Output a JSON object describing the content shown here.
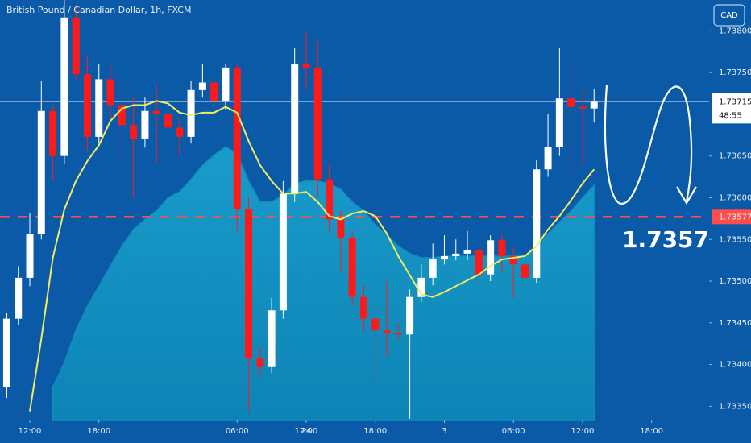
{
  "chart_data": {
    "type": "candlestick",
    "title": "British Pound / Canadian Dollar, 1h, FXCM",
    "currency": "CAD",
    "x": [
      -2,
      -1,
      0,
      1,
      2,
      3,
      4,
      5,
      6,
      7,
      8,
      9,
      10,
      11,
      12,
      13,
      14,
      15,
      16,
      17,
      18,
      19,
      20,
      21,
      22,
      23,
      24,
      25,
      26,
      27,
      28,
      29,
      30,
      31,
      32,
      33,
      34,
      35,
      36,
      37,
      38,
      39,
      40,
      41,
      42,
      43,
      44,
      45,
      46,
      47,
      48,
      49
    ],
    "open": [
      1.73373,
      1.73455,
      1.73504,
      1.73557,
      1.73704,
      1.7365,
      1.73816,
      1.73748,
      1.73673,
      1.73742,
      1.73711,
      1.73687,
      1.73671,
      1.73704,
      1.737,
      1.73684,
      1.73673,
      1.73729,
      1.73738,
      1.73716,
      1.73756,
      1.73586,
      1.73407,
      1.73397,
      1.73465,
      1.73605,
      1.7376,
      1.73756,
      1.73622,
      1.73574,
      1.73552,
      1.73481,
      1.73455,
      1.73441,
      1.73438,
      1.73436,
      1.73481,
      1.73504,
      1.73526,
      1.7353,
      1.73533,
      1.73537,
      1.73508,
      1.73549,
      1.7353,
      1.7352,
      1.73504,
      1.73634,
      1.73661,
      1.73719,
      1.73709,
      1.73707
    ],
    "high": [
      1.73462,
      1.73518,
      1.73581,
      1.7374,
      1.73712,
      1.73837,
      1.7383,
      1.7377,
      1.7376,
      1.7376,
      1.73735,
      1.7372,
      1.7372,
      1.73735,
      1.73712,
      1.73695,
      1.7374,
      1.7376,
      1.73745,
      1.7376,
      1.7376,
      1.736,
      1.7342,
      1.7348,
      1.7362,
      1.7378,
      1.738,
      1.7379,
      1.7364,
      1.73585,
      1.7356,
      1.73495,
      1.7347,
      1.735,
      1.7345,
      1.7349,
      1.7352,
      1.73545,
      1.73555,
      1.7355,
      1.7356,
      1.73545,
      1.73555,
      1.73555,
      1.7354,
      1.73535,
      1.73645,
      1.737,
      1.7378,
      1.7377,
      1.7373,
      1.7373
    ],
    "low": [
      1.7336,
      1.73448,
      1.73494,
      1.7355,
      1.7362,
      1.7364,
      1.7374,
      1.73655,
      1.73665,
      1.7369,
      1.7365,
      1.736,
      1.7366,
      1.7364,
      1.73668,
      1.7365,
      1.73665,
      1.7372,
      1.737,
      1.73705,
      1.7356,
      1.73344,
      1.73385,
      1.7339,
      1.73455,
      1.73595,
      1.7373,
      1.736,
      1.7356,
      1.7351,
      1.7347,
      1.7344,
      1.7338,
      1.7341,
      1.7343,
      1.73335,
      1.73475,
      1.73495,
      1.7352,
      1.73525,
      1.73525,
      1.73495,
      1.735,
      1.7351,
      1.7348,
      1.7347,
      1.73498,
      1.73625,
      1.7365,
      1.7362,
      1.7364,
      1.7369
    ],
    "close": [
      1.73455,
      1.73504,
      1.73557,
      1.73704,
      1.7365,
      1.73816,
      1.73748,
      1.73673,
      1.73742,
      1.73711,
      1.73687,
      1.73671,
      1.73704,
      1.737,
      1.73684,
      1.73673,
      1.73729,
      1.73738,
      1.73716,
      1.73756,
      1.73586,
      1.73407,
      1.73397,
      1.73465,
      1.73605,
      1.7376,
      1.73756,
      1.73622,
      1.73574,
      1.73552,
      1.73481,
      1.73455,
      1.73441,
      1.73438,
      1.73436,
      1.73481,
      1.73504,
      1.73526,
      1.7353,
      1.73533,
      1.73537,
      1.73508,
      1.73549,
      1.7353,
      1.7352,
      1.73504,
      1.73634,
      1.73661,
      1.73719,
      1.73709,
      1.73707,
      1.73715
    ],
    "up_color": "#ffffff",
    "down_color": "#ff1a1a",
    "moving_average": {
      "color": "#f4ec5e",
      "values": [
        null,
        null,
        1.73344,
        1.73431,
        1.73528,
        1.73586,
        1.7362,
        1.73644,
        1.73663,
        1.73692,
        1.73707,
        1.73711,
        1.73711,
        1.73716,
        1.73713,
        1.73702,
        1.73699,
        1.73702,
        1.73702,
        1.73709,
        1.73702,
        1.73668,
        1.73639,
        1.7362,
        1.73605,
        1.73605,
        1.73607,
        1.73595,
        1.73578,
        1.73574,
        1.73581,
        1.73584,
        1.73578,
        1.73557,
        1.7353,
        1.73507,
        1.73484,
        1.73481,
        1.73487,
        1.73494,
        1.73501,
        1.73508,
        1.73518,
        1.73526,
        1.73528,
        1.7353,
        1.73542,
        1.73562,
        1.73578,
        1.73597,
        1.73617,
        1.73634
      ]
    },
    "area": {
      "color": "#0e8fbd",
      "values": [
        null,
        null,
        null,
        null,
        1.73373,
        1.73402,
        1.73441,
        1.7347,
        1.73494,
        1.73518,
        1.73542,
        1.73562,
        1.73574,
        1.73584,
        1.736,
        1.73607,
        1.73622,
        1.73639,
        1.73651,
        1.73661,
        1.73653,
        1.7362,
        1.73595,
        1.73595,
        1.73603,
        1.73617,
        1.7362,
        1.7362,
        1.73617,
        1.7361,
        1.73595,
        1.73584,
        1.73568,
        1.73555,
        1.73542,
        1.73533,
        1.73528,
        1.73528,
        1.7353,
        1.7353,
        1.7353,
        1.7353,
        1.7353,
        1.7353,
        1.7353,
        1.7353,
        1.73542,
        1.73557,
        1.73571,
        1.73584,
        1.736,
        1.73615
      ]
    },
    "price_line": {
      "value": 1.73577,
      "label": "1.73577",
      "color": "#ff4d4d"
    },
    "last_price": {
      "value": 1.73715,
      "label": "1.73715"
    },
    "countdown": "48:55",
    "annotation": "1.7357",
    "xlim": [
      -2.59,
      58.99
    ],
    "ylim": [
      1.73333,
      1.73837
    ],
    "xticks": [
      {
        "value": 0,
        "label": "12:00"
      },
      {
        "value": 6,
        "label": "18:00"
      },
      24,
      {
        "value": 18,
        "label": "06:00"
      },
      {
        "value": 24,
        "label": "12:00"
      },
      {
        "value": 30,
        "label": "18:00"
      },
      {
        "value": 36,
        "label": "3"
      },
      {
        "value": 42,
        "label": "06:00"
      },
      {
        "value": 48,
        "label": "12:00"
      },
      {
        "value": 54,
        "label": "18:00"
      }
    ],
    "yticks": [
      {
        "value": 1.7335,
        "label": "1.73350"
      },
      {
        "value": 1.734,
        "label": "1.73400"
      },
      {
        "value": 1.7345,
        "label": "1.73450"
      },
      {
        "value": 1.735,
        "label": "1.73500"
      },
      {
        "value": 1.7355,
        "label": "1.73550"
      },
      {
        "value": 1.736,
        "label": "1.73600"
      },
      {
        "value": 1.7365,
        "label": "1.73650"
      },
      {
        "value": 1.7375,
        "label": "1.73750"
      },
      {
        "value": 1.738,
        "label": "1.73800"
      }
    ],
    "grid": false
  }
}
